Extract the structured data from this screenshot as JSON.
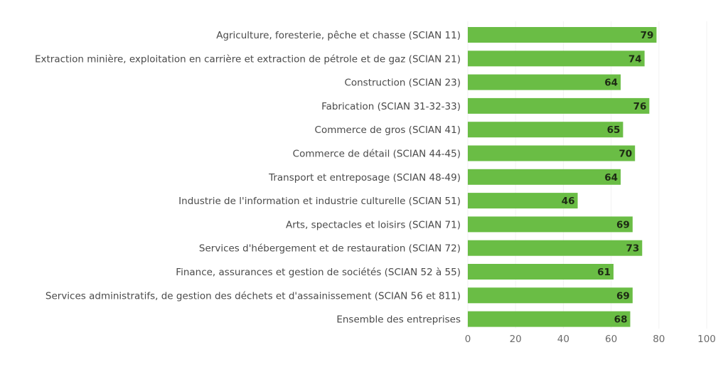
{
  "chart_data": {
    "type": "bar",
    "orientation": "horizontal",
    "title": "",
    "xlabel": "",
    "ylabel": "",
    "xlim": [
      0,
      100
    ],
    "xticks": [
      0,
      20,
      40,
      60,
      80,
      100
    ],
    "grid": true,
    "bar_color": "#6abd45",
    "categories": [
      "Agriculture, foresterie, pêche et chasse (SCIAN 11)",
      "Extraction minière, exploitation en carrière et extraction de pétrole et de gaz (SCIAN 21)",
      "Construction (SCIAN 23)",
      "Fabrication (SCIAN 31-32-33)",
      "Commerce de gros (SCIAN 41)",
      "Commerce de détail (SCIAN 44-45)",
      "Transport et entreposage (SCIAN 48-49)",
      "Industrie de l'information et industrie culturelle (SCIAN 51)",
      "Arts, spectacles et loisirs (SCIAN 71)",
      "Services d'hébergement et de restauration (SCIAN 72)",
      "Finance, assurances et gestion de sociétés (SCIAN 52 à 55)",
      "Services administratifs, de gestion des déchets et d'assainissement (SCIAN 56 et 811)",
      "Ensemble des entreprises"
    ],
    "values": [
      79,
      74,
      64,
      76,
      65,
      70,
      64,
      46,
      69,
      73,
      61,
      69,
      68
    ]
  }
}
